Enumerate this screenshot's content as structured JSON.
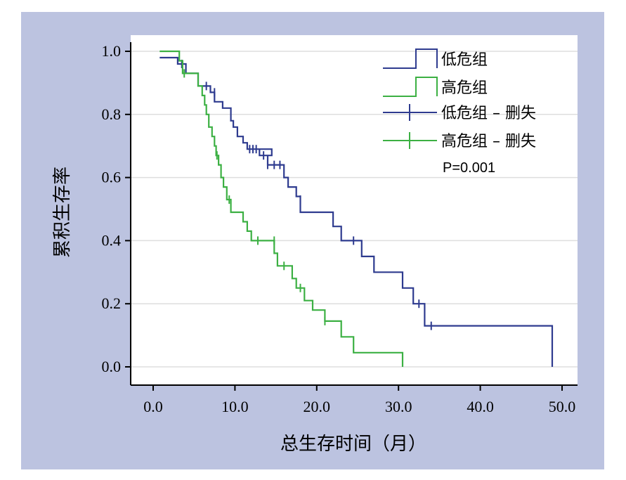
{
  "chart_data": {
    "type": "line",
    "xlabel": "总生存时间（月）",
    "ylabel": "累积生存率",
    "xlim": [
      -3,
      52
    ],
    "ylim": [
      -0.06,
      1.04
    ],
    "x_ticks": [
      "0.0",
      "10.0",
      "20.0",
      "30.0",
      "40.0",
      "50.0"
    ],
    "y_ticks": [
      "0.0",
      "0.2",
      "0.4",
      "0.6",
      "0.8",
      "1.0"
    ],
    "x_tick_values": [
      0,
      10,
      20,
      30,
      40,
      50
    ],
    "y_tick_values": [
      0,
      0.2,
      0.4,
      0.6,
      0.8,
      1.0
    ],
    "grid": true,
    "legend_position": "top-right",
    "annotation": "P=0.001",
    "colors": {
      "low": "#2e3b8f",
      "high": "#3cb043",
      "background": "#bcc3e0",
      "grid": "#dedede"
    },
    "legend": [
      "低危组",
      "高危组",
      "低危组 – 删失",
      "高危组 – 删失"
    ],
    "series": [
      {
        "name": "低危组",
        "step": [
          [
            0.8,
            0.98
          ],
          [
            3.0,
            0.98
          ],
          [
            3.0,
            0.96
          ],
          [
            4.0,
            0.96
          ],
          [
            4.0,
            0.93
          ],
          [
            5.5,
            0.93
          ],
          [
            5.5,
            0.89
          ],
          [
            7.0,
            0.89
          ],
          [
            7.0,
            0.87
          ],
          [
            7.5,
            0.87
          ],
          [
            7.5,
            0.84
          ],
          [
            8.5,
            0.84
          ],
          [
            8.5,
            0.82
          ],
          [
            9.5,
            0.82
          ],
          [
            9.5,
            0.78
          ],
          [
            9.8,
            0.78
          ],
          [
            9.8,
            0.76
          ],
          [
            10.3,
            0.76
          ],
          [
            10.3,
            0.73
          ],
          [
            11.0,
            0.73
          ],
          [
            11.0,
            0.71
          ],
          [
            11.5,
            0.71
          ],
          [
            11.5,
            0.69
          ],
          [
            14.5,
            0.69
          ],
          [
            14.5,
            0.67
          ],
          [
            13.0,
            0.67
          ],
          [
            13.0,
            0.69
          ],
          [
            13.0,
            0.67
          ],
          [
            14.0,
            0.67
          ],
          [
            14.0,
            0.64
          ],
          [
            16.0,
            0.64
          ],
          [
            16.0,
            0.6
          ],
          [
            16.5,
            0.6
          ],
          [
            16.5,
            0.57
          ],
          [
            17.5,
            0.57
          ],
          [
            17.5,
            0.54
          ],
          [
            18.0,
            0.54
          ],
          [
            18.0,
            0.49
          ],
          [
            22.0,
            0.49
          ],
          [
            22.0,
            0.445
          ],
          [
            23.0,
            0.445
          ],
          [
            23.0,
            0.4
          ],
          [
            25.5,
            0.4
          ],
          [
            25.5,
            0.35
          ],
          [
            27.0,
            0.35
          ],
          [
            27.0,
            0.3
          ],
          [
            30.5,
            0.3
          ],
          [
            30.5,
            0.25
          ],
          [
            31.8,
            0.25
          ],
          [
            31.8,
            0.2
          ],
          [
            33.2,
            0.2
          ],
          [
            33.2,
            0.13
          ],
          [
            48.8,
            0.13
          ],
          [
            48.8,
            0.0
          ]
        ],
        "censor": [
          [
            3.5,
            0.96
          ],
          [
            6.5,
            0.89
          ],
          [
            7.5,
            0.87
          ],
          [
            11.8,
            0.69
          ],
          [
            12.2,
            0.69
          ],
          [
            12.6,
            0.69
          ],
          [
            13.5,
            0.67
          ],
          [
            14.0,
            0.64
          ],
          [
            14.8,
            0.64
          ],
          [
            15.5,
            0.64
          ],
          [
            18.0,
            0.53
          ],
          [
            24.5,
            0.4
          ],
          [
            32.5,
            0.2
          ],
          [
            34.0,
            0.13
          ]
        ]
      },
      {
        "name": "高危组",
        "step": [
          [
            0.8,
            1.0
          ],
          [
            3.2,
            1.0
          ],
          [
            3.2,
            0.97
          ],
          [
            3.6,
            0.97
          ],
          [
            3.6,
            0.93
          ],
          [
            5.5,
            0.93
          ],
          [
            5.5,
            0.89
          ],
          [
            6.0,
            0.89
          ],
          [
            6.0,
            0.86
          ],
          [
            6.3,
            0.86
          ],
          [
            6.3,
            0.83
          ],
          [
            6.5,
            0.83
          ],
          [
            6.5,
            0.8
          ],
          [
            6.8,
            0.8
          ],
          [
            6.8,
            0.76
          ],
          [
            7.2,
            0.76
          ],
          [
            7.2,
            0.73
          ],
          [
            7.5,
            0.73
          ],
          [
            7.5,
            0.7
          ],
          [
            7.7,
            0.7
          ],
          [
            7.7,
            0.67
          ],
          [
            8.0,
            0.67
          ],
          [
            8.0,
            0.64
          ],
          [
            8.3,
            0.64
          ],
          [
            8.3,
            0.6
          ],
          [
            8.6,
            0.6
          ],
          [
            8.6,
            0.57
          ],
          [
            9.0,
            0.57
          ],
          [
            9.0,
            0.53
          ],
          [
            9.5,
            0.53
          ],
          [
            9.5,
            0.49
          ],
          [
            11.0,
            0.49
          ],
          [
            11.0,
            0.46
          ],
          [
            11.5,
            0.46
          ],
          [
            11.5,
            0.43
          ],
          [
            12.0,
            0.43
          ],
          [
            12.0,
            0.4
          ],
          [
            14.8,
            0.4
          ],
          [
            14.8,
            0.36
          ],
          [
            15.2,
            0.36
          ],
          [
            15.2,
            0.32
          ],
          [
            17.0,
            0.32
          ],
          [
            17.0,
            0.28
          ],
          [
            17.5,
            0.28
          ],
          [
            17.5,
            0.25
          ],
          [
            18.5,
            0.25
          ],
          [
            18.5,
            0.21
          ],
          [
            19.5,
            0.21
          ],
          [
            19.5,
            0.18
          ],
          [
            21.0,
            0.18
          ],
          [
            21.0,
            0.145
          ],
          [
            23.0,
            0.145
          ],
          [
            23.0,
            0.095
          ],
          [
            24.5,
            0.095
          ],
          [
            24.5,
            0.045
          ],
          [
            30.5,
            0.045
          ],
          [
            30.5,
            0.0
          ]
        ],
        "censor": [
          [
            3.8,
            0.93
          ],
          [
            7.8,
            0.67
          ],
          [
            9.3,
            0.53
          ],
          [
            12.8,
            0.4
          ],
          [
            14.8,
            0.4
          ],
          [
            16.0,
            0.32
          ],
          [
            18.0,
            0.25
          ],
          [
            21.0,
            0.145
          ]
        ]
      }
    ]
  }
}
